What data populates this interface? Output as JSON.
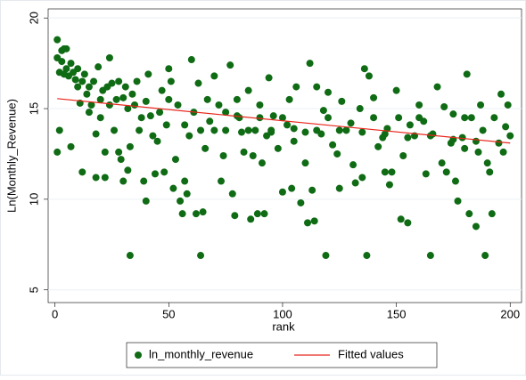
{
  "chart_data": {
    "type": "scatter",
    "ylabel": "Ln(Monthly_Revenue)",
    "xlabel": "rank",
    "xlim": [
      -3,
      205
    ],
    "ylim": [
      4.3,
      20.5
    ],
    "xticks": [
      0,
      50,
      100,
      150,
      200
    ],
    "yticks": [
      5,
      10,
      15,
      20
    ],
    "grid": true,
    "series": [
      {
        "name": "ln_monthly_revenue",
        "color": "#0f6b14",
        "type": "scatter",
        "x": [
          1,
          1,
          1,
          2,
          2,
          3,
          3,
          4,
          4,
          5,
          5,
          6,
          7,
          7,
          8,
          9,
          10,
          10,
          11,
          12,
          12,
          13,
          14,
          15,
          15,
          16,
          17,
          18,
          18,
          19,
          20,
          20,
          21,
          22,
          22,
          23,
          24,
          24,
          25,
          26,
          27,
          28,
          28,
          29,
          30,
          30,
          31,
          32,
          32,
          33,
          33,
          34,
          35,
          36,
          37,
          38,
          39,
          40,
          40,
          41,
          42,
          43,
          44,
          45,
          46,
          47,
          48,
          49,
          50,
          50,
          51,
          52,
          53,
          54,
          55,
          56,
          57,
          57,
          58,
          59,
          60,
          61,
          62,
          63,
          64,
          64,
          65,
          66,
          67,
          68,
          70,
          70,
          72,
          73,
          74,
          75,
          77,
          78,
          79,
          80,
          81,
          82,
          83,
          85,
          86,
          87,
          88,
          89,
          90,
          91,
          92,
          93,
          94,
          95,
          96,
          98,
          100,
          102,
          103,
          104,
          105,
          106,
          108,
          110,
          111,
          112,
          113,
          114,
          115,
          117,
          118,
          119,
          120,
          122,
          124,
          125,
          126,
          128,
          130,
          131,
          132,
          134,
          135,
          136,
          137,
          138,
          140,
          142,
          144,
          145,
          146,
          147,
          148,
          150,
          151,
          152,
          153,
          155,
          156,
          158,
          160,
          162,
          163,
          165,
          166,
          168,
          170,
          171,
          172,
          174,
          175,
          176,
          177,
          179,
          180,
          181,
          182,
          183,
          185,
          186,
          187,
          188,
          189,
          190,
          191,
          192,
          193,
          195,
          196,
          197,
          198,
          199,
          200,
          75,
          85,
          95,
          105,
          110,
          115,
          125,
          135,
          145,
          155,
          165,
          175,
          185,
          120,
          140,
          160,
          180,
          100,
          90,
          80
        ],
        "values": [
          18.8,
          17.8,
          12.6,
          17.0,
          13.8,
          18.2,
          17.6,
          18.3,
          16.9,
          18.3,
          17.2,
          16.8,
          12.9,
          17.5,
          17.0,
          16.6,
          16.2,
          17.2,
          15.3,
          11.5,
          16.5,
          16.9,
          15.8,
          14.8,
          16.2,
          15.2,
          16.5,
          11.2,
          13.6,
          17.3,
          15.5,
          14.5,
          16.0,
          12.6,
          11.2,
          16.2,
          17.8,
          15.2,
          16.4,
          13.8,
          15.5,
          16.5,
          12.6,
          12.2,
          11.0,
          15.6,
          16.2,
          11.6,
          15.0,
          6.9,
          12.9,
          15.8,
          15.2,
          16.5,
          13.8,
          14.5,
          11.0,
          9.9,
          15.4,
          16.9,
          14.6,
          13.5,
          11.4,
          13.2,
          14.8,
          16.0,
          11.5,
          14.1,
          17.2,
          15.5,
          16.5,
          10.6,
          12.2,
          15.2,
          9.9,
          9.2,
          14.1,
          11.0,
          10.3,
          13.5,
          17.7,
          14.8,
          9.2,
          16.4,
          6.9,
          13.8,
          9.3,
          12.8,
          15.5,
          14.3,
          13.8,
          16.8,
          15.2,
          11.0,
          12.4,
          14.8,
          17.4,
          10.3,
          9.1,
          15.5,
          14.5,
          13.7,
          12.6,
          16.0,
          8.9,
          12.4,
          13.8,
          9.2,
          15.2,
          12.0,
          9.2,
          13.5,
          16.7,
          13.7,
          14.6,
          12.8,
          10.4,
          14.1,
          15.5,
          10.6,
          13.2,
          16.2,
          9.8,
          12.0,
          8.7,
          17.5,
          10.5,
          8.8,
          16.2,
          13.6,
          14.9,
          6.9,
          15.9,
          13.0,
          12.5,
          10.6,
          15.4,
          13.8,
          14.2,
          11.9,
          10.9,
          15.0,
          11.2,
          17.2,
          6.9,
          16.8,
          15.6,
          12.9,
          13.4,
          11.5,
          13.9,
          10.8,
          11.5,
          16.0,
          14.5,
          8.9,
          12.4,
          8.7,
          14.1,
          13.5,
          15.2,
          14.3,
          11.4,
          6.9,
          13.6,
          16.2,
          12.0,
          15.1,
          11.5,
          13.1,
          14.7,
          11.0,
          9.9,
          13.4,
          12.8,
          16.9,
          9.2,
          14.5,
          8.5,
          12.6,
          15.2,
          13.8,
          6.9,
          12.0,
          11.5,
          9.2,
          14.5,
          13.1,
          15.8,
          12.6,
          14.0,
          15.2,
          13.5,
          13.8,
          13.8,
          13.8,
          13.9,
          13.7,
          13.8,
          13.8,
          13.7,
          13.6,
          13.4,
          13.5,
          13.3,
          13.2,
          14.5,
          14.5,
          14.5,
          14.5,
          14.5,
          14.5,
          14.6
        ]
      },
      {
        "name": "Fitted values",
        "color": "#e8261c",
        "type": "line",
        "x": [
          1,
          200
        ],
        "values": [
          15.55,
          13.1
        ]
      }
    ]
  }
}
